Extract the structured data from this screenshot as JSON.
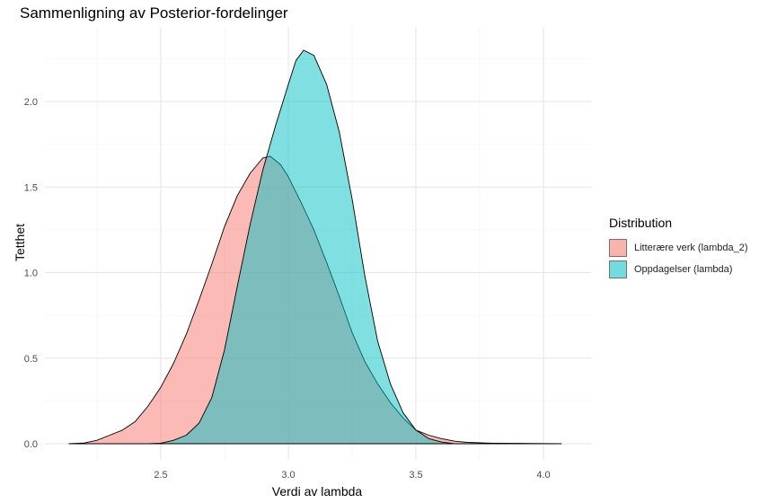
{
  "chart_data": {
    "type": "area",
    "title": "Sammenligning av Posterior-fordelinger",
    "xlabel": "Verdi av lambda",
    "ylabel": "Tetthet",
    "xlim": [
      2.1,
      4.1
    ],
    "ylim": [
      0.0,
      2.4
    ],
    "x_ticks": [
      "2.5",
      "3.0",
      "3.5",
      "4.0"
    ],
    "y_ticks": [
      "0.0",
      "0.5",
      "1.0",
      "1.5",
      "2.0"
    ],
    "legend_title": "Distribution",
    "legend_position": "right",
    "grid": true,
    "series": [
      {
        "name": "Litterære verk (lambda_2)",
        "color": "#F8766D",
        "x": [
          2.14,
          2.2,
          2.25,
          2.3,
          2.35,
          2.4,
          2.45,
          2.5,
          2.55,
          2.6,
          2.65,
          2.7,
          2.75,
          2.8,
          2.85,
          2.9,
          2.93,
          2.97,
          3.0,
          3.05,
          3.1,
          3.15,
          3.2,
          3.25,
          3.3,
          3.35,
          3.4,
          3.45,
          3.5,
          3.55,
          3.6,
          3.65,
          3.7,
          3.75,
          3.8,
          3.9,
          4.0,
          4.07
        ],
        "y": [
          0.0,
          0.004,
          0.02,
          0.05,
          0.08,
          0.13,
          0.22,
          0.33,
          0.47,
          0.64,
          0.84,
          1.05,
          1.27,
          1.45,
          1.58,
          1.67,
          1.68,
          1.63,
          1.56,
          1.41,
          1.25,
          1.06,
          0.86,
          0.65,
          0.48,
          0.35,
          0.24,
          0.15,
          0.08,
          0.05,
          0.03,
          0.015,
          0.008,
          0.005,
          0.003,
          0.002,
          0.001,
          0.0
        ]
      },
      {
        "name": "Oppdagelser (lambda)",
        "color": "#00BFC4",
        "x": [
          2.45,
          2.5,
          2.55,
          2.6,
          2.65,
          2.7,
          2.75,
          2.8,
          2.85,
          2.9,
          2.95,
          3.0,
          3.03,
          3.06,
          3.1,
          3.15,
          3.2,
          3.25,
          3.3,
          3.35,
          3.4,
          3.45,
          3.5,
          3.55,
          3.6,
          3.65
        ],
        "y": [
          0.0,
          0.003,
          0.02,
          0.05,
          0.12,
          0.27,
          0.55,
          0.92,
          1.28,
          1.6,
          1.86,
          2.1,
          2.24,
          2.3,
          2.27,
          2.1,
          1.82,
          1.43,
          0.98,
          0.6,
          0.35,
          0.18,
          0.08,
          0.03,
          0.01,
          0.0
        ]
      }
    ]
  }
}
